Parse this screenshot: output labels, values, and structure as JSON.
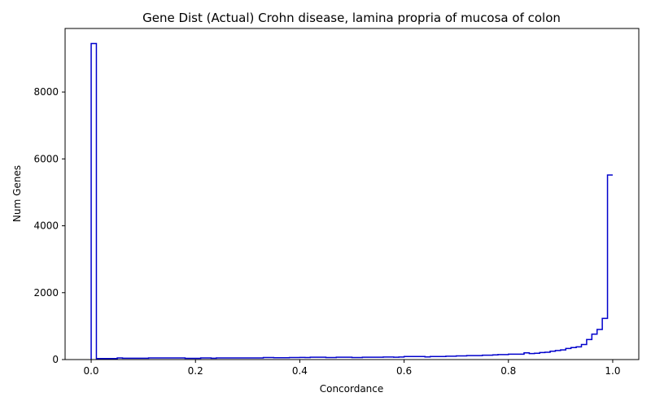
{
  "chart_data": {
    "type": "step",
    "title": "Gene Dist (Actual) Crohn disease, lamina propria of mucosa of colon",
    "xlabel": "Concordance",
    "ylabel": "Num Genes",
    "xlim": [
      -0.05,
      1.05
    ],
    "ylim": [
      0,
      9900
    ],
    "x_ticks": [
      0.0,
      0.2,
      0.4,
      0.6,
      0.8,
      1.0
    ],
    "x_tick_labels": [
      "0.0",
      "0.2",
      "0.4",
      "0.6",
      "0.8",
      "1.0"
    ],
    "y_ticks": [
      0,
      2000,
      4000,
      6000,
      8000
    ],
    "y_tick_labels": [
      "0",
      "2000",
      "4000",
      "6000",
      "8000"
    ],
    "grid": false,
    "legend": "none",
    "line_color": "#0000cc",
    "bin_width": 0.01,
    "series": [
      {
        "bin_start": 0.0,
        "values": [
          9450,
          30,
          30,
          30,
          30,
          50,
          40,
          40,
          40,
          40,
          40,
          50,
          50,
          50,
          50,
          50,
          50,
          50,
          35,
          35,
          35,
          50,
          50,
          40,
          50,
          50,
          50,
          50,
          50,
          50,
          50,
          50,
          50,
          60,
          60,
          55,
          55,
          55,
          60,
          60,
          65,
          60,
          70,
          70,
          70,
          60,
          60,
          70,
          70,
          70,
          60,
          60,
          70,
          70,
          70,
          70,
          75,
          75,
          70,
          75,
          90,
          90,
          90,
          90,
          80,
          90,
          90,
          90,
          100,
          100,
          110,
          110,
          120,
          120,
          120,
          130,
          130,
          140,
          150,
          150,
          160,
          160,
          160,
          200,
          180,
          190,
          210,
          220,
          250,
          270,
          290,
          330,
          360,
          380,
          450,
          600,
          760,
          900,
          1230,
          5520
        ]
      }
    ]
  }
}
